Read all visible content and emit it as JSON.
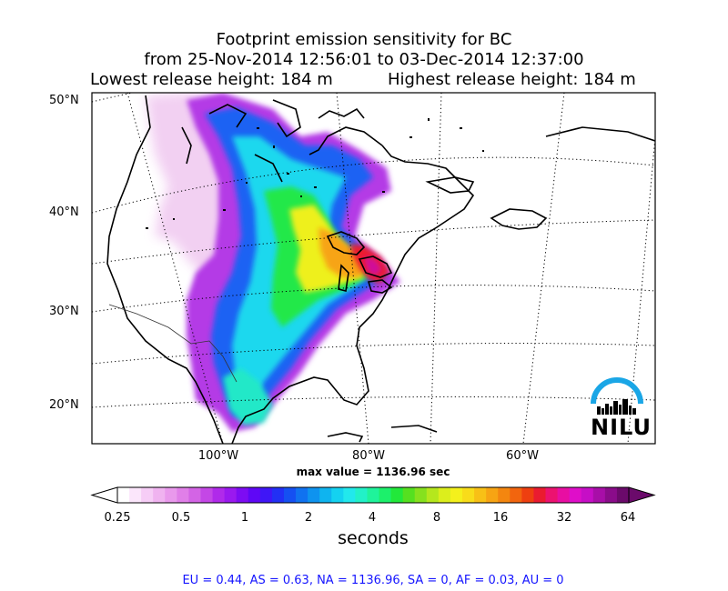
{
  "title": {
    "line1": "Footprint emission sensitivity for BC",
    "line2": "from 25-Nov-2014 12:56:01 to 03-Dec-2014 12:37:00",
    "release_low": "Lowest release height: 184 m",
    "release_high": "Highest release height: 184 m"
  },
  "map": {
    "projection": "conic",
    "lat_labels": [
      "50°N",
      "40°N",
      "30°N",
      "20°N"
    ],
    "lon_labels": [
      "100°W",
      "80°W",
      "60°W"
    ],
    "max_value_text": "max value = 1136.96 sec",
    "max_value": 1136.96,
    "logo": "NILU",
    "logo_color": "#1aa6e6"
  },
  "colorbar": {
    "ticks": [
      "0.25",
      "0.5",
      "1",
      "2",
      "4",
      "8",
      "16",
      "32",
      "64"
    ],
    "unit": "seconds",
    "colors": [
      "#ffffff",
      "#fbe6fb",
      "#f6cdf6",
      "#f0b3f0",
      "#e999ec",
      "#e07fe8",
      "#d364e5",
      "#c447e6",
      "#b02aea",
      "#9a19ef",
      "#7d0cf3",
      "#5f07f6",
      "#3f16f7",
      "#2230f5",
      "#1550f2",
      "#1072f0",
      "#0e93ef",
      "#0fb4ef",
      "#14d2f0",
      "#22e8ec",
      "#22f1c8",
      "#1ff39b",
      "#1cf06b",
      "#22e83a",
      "#55e020",
      "#86e11e",
      "#b5e71d",
      "#dcee1c",
      "#f4f01c",
      "#f8dc1a",
      "#f8c016",
      "#f7a413",
      "#f4860f",
      "#f2650e",
      "#ee3f10",
      "#ea1b30",
      "#ec1270",
      "#e80ea2",
      "#df0ec9",
      "#c60ec6",
      "#a80ea8",
      "#8a0c8a",
      "#6b0a6b"
    ]
  },
  "footer": "EU = 0.44,  AS = 0.63,  NA = 1136.96,  SA = 0,  AF = 0.03,  AU = 0"
}
